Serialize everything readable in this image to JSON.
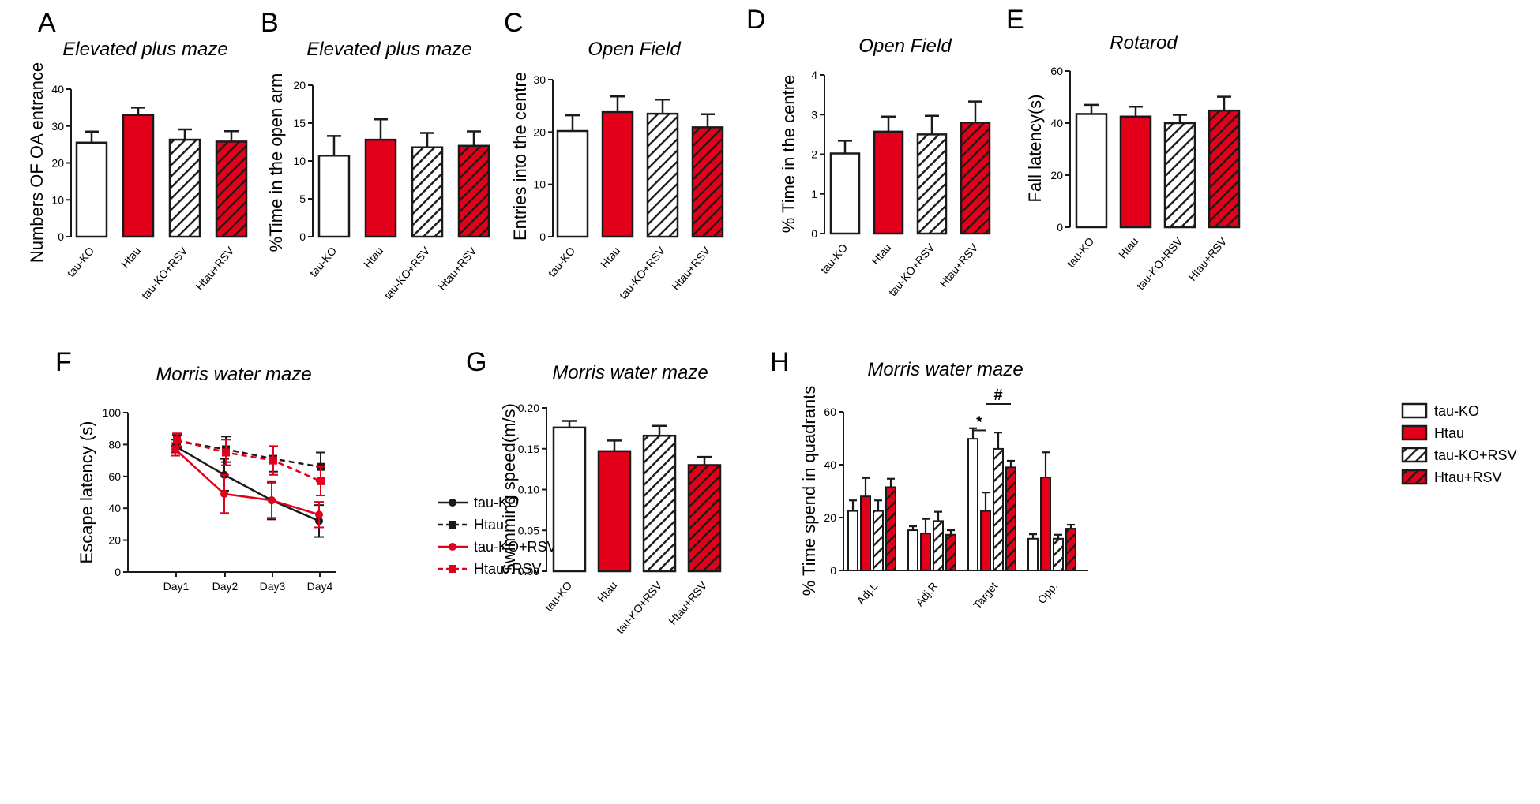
{
  "colors": {
    "red": "#e3001b",
    "black": "#1a1a1a",
    "white": "#ffffff",
    "hatch_light": "#ffffff",
    "hatch_dark": "#e3001b"
  },
  "legend_groups": {
    "entries": [
      {
        "label": "tau-KO",
        "fill": "white"
      },
      {
        "label": "Htau",
        "fill": "red"
      },
      {
        "label": "tau-KO+RSV",
        "fill": "hatch_white"
      },
      {
        "label": "Htau+RSV",
        "fill": "hatch_red"
      }
    ]
  },
  "chart_data": [
    {
      "id": "A",
      "panel_label": "A",
      "type": "bar",
      "title": "Elevated plus maze",
      "ylabel": "Numbers OF OA entrance",
      "ylim": [
        0,
        40
      ],
      "yticks": [
        0,
        10,
        20,
        30,
        40
      ],
      "categories": [
        "tau-KO",
        "Htau",
        "tau-KO+RSV",
        "Htau+RSV"
      ],
      "values": [
        25.5,
        33,
        26.3,
        25.8
      ],
      "errors": [
        3,
        2,
        2.8,
        2.8
      ]
    },
    {
      "id": "B",
      "panel_label": "B",
      "type": "bar",
      "title": "Elevated plus maze",
      "ylabel": "%Time in the open arm",
      "ylim": [
        0,
        20
      ],
      "yticks": [
        0,
        5,
        10,
        15,
        20
      ],
      "categories": [
        "tau-KO",
        "Htau",
        "tau-KO+RSV",
        "Htau+RSV"
      ],
      "values": [
        10.7,
        12.8,
        11.8,
        12
      ],
      "errors": [
        2.6,
        2.7,
        1.9,
        1.9
      ]
    },
    {
      "id": "C",
      "panel_label": "C",
      "type": "bar",
      "title": "Open Field",
      "ylabel": "Entries into the centre",
      "ylim": [
        0,
        30
      ],
      "yticks": [
        0,
        10,
        20,
        30
      ],
      "categories": [
        "tau-KO",
        "Htau",
        "tau-KO+RSV",
        "Htau+RSV"
      ],
      "values": [
        20.2,
        23.8,
        23.5,
        20.9
      ],
      "errors": [
        3,
        3,
        2.7,
        2.5
      ]
    },
    {
      "id": "D",
      "panel_label": "D",
      "type": "bar",
      "title": "Open Field",
      "ylabel": "% Time in the centre",
      "ylim": [
        0,
        4
      ],
      "yticks": [
        0,
        1,
        2,
        3,
        4
      ],
      "categories": [
        "tau-KO",
        "Htau",
        "tau-KO+RSV",
        "Htau+RSV"
      ],
      "values": [
        2.02,
        2.57,
        2.5,
        2.8
      ],
      "errors": [
        0.32,
        0.38,
        0.47,
        0.53
      ]
    },
    {
      "id": "E",
      "panel_label": "E",
      "type": "bar",
      "title": "Rotarod",
      "ylabel": "Fall latency(s)",
      "ylim": [
        0,
        60
      ],
      "yticks": [
        0,
        20,
        40,
        60
      ],
      "categories": [
        "tau-KO",
        "Htau",
        "tau-KO+RSV",
        "Htau+RSV"
      ],
      "values": [
        43.5,
        42.5,
        40,
        44.8
      ],
      "errors": [
        3.5,
        3.8,
        3.2,
        5.3
      ]
    },
    {
      "id": "F",
      "panel_label": "F",
      "type": "line",
      "title": "Morris water maze",
      "ylabel": "Escape latency (s)",
      "ylim": [
        0,
        100
      ],
      "yticks": [
        0,
        20,
        40,
        60,
        80,
        100
      ],
      "x": [
        "Day1",
        "Day2",
        "Day3",
        "Day4"
      ],
      "series": [
        {
          "name": "tau-KO",
          "values": [
            79,
            61,
            45,
            32
          ],
          "errors": [
            4,
            10,
            12,
            10
          ],
          "color": "black",
          "dashed": false,
          "marker": "circle"
        },
        {
          "name": "Htau",
          "values": [
            82,
            77,
            71,
            66
          ],
          "errors": [
            4,
            8,
            8,
            9
          ],
          "color": "black",
          "dashed": true,
          "marker": "square"
        },
        {
          "name": "tau-KO+RSV",
          "values": [
            77,
            49,
            45,
            36
          ],
          "errors": [
            4,
            12,
            11,
            8
          ],
          "color": "red",
          "dashed": false,
          "marker": "circle"
        },
        {
          "name": "Htau+RSV",
          "values": [
            83,
            75,
            70,
            57
          ],
          "errors": [
            4,
            8,
            9,
            9
          ],
          "color": "red",
          "dashed": true,
          "marker": "square"
        }
      ]
    },
    {
      "id": "G",
      "panel_label": "G",
      "type": "bar",
      "title": "Morris water maze",
      "ylabel": "Swimming speed(m/s)",
      "ylim": [
        0,
        0.2
      ],
      "yticks": [
        "0.00",
        "0.05",
        "0.10",
        "0.15",
        "0.20"
      ],
      "categories": [
        "tau-KO",
        "Htau",
        "tau-KO+RSV",
        "Htau+RSV"
      ],
      "values": [
        0.176,
        0.147,
        0.166,
        0.13
      ],
      "errors": [
        0.008,
        0.013,
        0.012,
        0.01
      ]
    },
    {
      "id": "H",
      "panel_label": "H",
      "type": "bar",
      "title": "Morris water maze",
      "ylabel": "% Time spend in  quadrants",
      "ylim": [
        0,
        60
      ],
      "yticks": [
        0,
        20,
        40,
        60
      ],
      "categories": [
        "Adj.L",
        "Adj.R",
        "Target",
        "Opp."
      ],
      "series": [
        {
          "name": "tau-KO",
          "values": [
            22.5,
            15.2,
            49.8,
            12
          ],
          "errors": [
            4,
            1.5,
            4,
            1.7
          ]
        },
        {
          "name": "Htau",
          "values": [
            28,
            14,
            22.5,
            35.2
          ],
          "errors": [
            7,
            5.5,
            7,
            9.5
          ]
        },
        {
          "name": "tau-KO+RSV",
          "values": [
            22.5,
            18.7,
            46,
            12
          ],
          "errors": [
            4,
            3.5,
            6.2,
            1.5
          ]
        },
        {
          "name": "Htau+RSV",
          "values": [
            31.5,
            13.5,
            39,
            15.8
          ],
          "errors": [
            3.2,
            1.7,
            2.5,
            1.5
          ]
        }
      ],
      "annotations": [
        "*",
        "#"
      ]
    }
  ]
}
